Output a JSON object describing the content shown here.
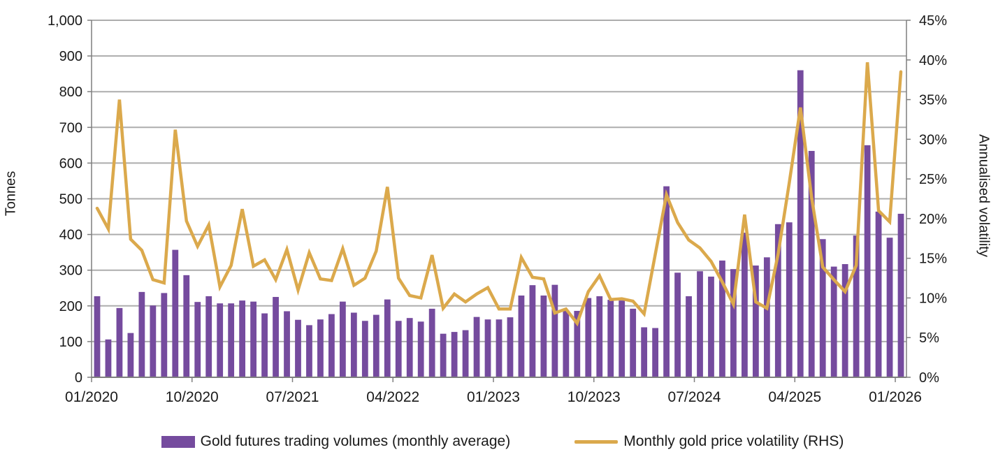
{
  "chart_data": {
    "type": "combo",
    "subtype": [
      "bar",
      "line"
    ],
    "n_months": 73,
    "categories_start": "01/2020",
    "categories_end": "01/2026",
    "x_tick_labels": [
      "01/2020",
      "10/2020",
      "07/2021",
      "04/2022",
      "01/2023",
      "10/2023",
      "07/2024",
      "04/2025",
      "01/2026"
    ],
    "x_tick_interval_months": 9,
    "grid": true,
    "legend_position": "bottom",
    "left_axis": {
      "title": "Tonnes",
      "min": 0,
      "max": 1000,
      "step": 100,
      "tick_labels": [
        "0",
        "100",
        "200",
        "300",
        "400",
        "500",
        "600",
        "700",
        "800",
        "900",
        "1,000"
      ]
    },
    "right_axis": {
      "title": "Annualised volatility",
      "min": 0,
      "max": 45,
      "step": 5,
      "tick_labels": [
        "0%",
        "5%",
        "10%",
        "15%",
        "20%",
        "25%",
        "30%",
        "35%",
        "40%",
        "45%"
      ]
    },
    "series": [
      {
        "name": "Gold futures trading volumes (monthly average)",
        "type": "bar",
        "axis": "left",
        "unit": "tonnes",
        "color": "#754B9E",
        "values": [
          227,
          106,
          194,
          124,
          239,
          201,
          236,
          357,
          286,
          211,
          227,
          207,
          207,
          215,
          212,
          179,
          225,
          185,
          161,
          146,
          162,
          177,
          212,
          181,
          158,
          175,
          218,
          158,
          166,
          156,
          192,
          122,
          127,
          132,
          169,
          162,
          162,
          168,
          229,
          258,
          229,
          259,
          188,
          186,
          222,
          227,
          217,
          215,
          192,
          140,
          138,
          535,
          293,
          227,
          297,
          282,
          327,
          303,
          405,
          313,
          336,
          429,
          434,
          860,
          634,
          387,
          310,
          317,
          397,
          650,
          464,
          391,
          458
        ]
      },
      {
        "name": "Monthly gold price volatility (RHS)",
        "type": "line",
        "axis": "right",
        "unit": "%",
        "color": "#DBA94C",
        "values": [
          21.3,
          18.7,
          35.0,
          17.4,
          16.0,
          12.3,
          11.9,
          31.2,
          19.7,
          16.5,
          19.2,
          11.4,
          14.1,
          21.2,
          14.0,
          14.8,
          12.3,
          16.1,
          11.0,
          15.7,
          12.4,
          12.2,
          16.2,
          11.6,
          12.5,
          15.9,
          24.0,
          12.5,
          10.3,
          10.0,
          15.4,
          8.7,
          10.5,
          9.5,
          10.5,
          11.3,
          8.6,
          8.6,
          15.1,
          12.6,
          12.4,
          8.1,
          8.6,
          6.8,
          10.8,
          12.8,
          9.8,
          9.9,
          9.6,
          8.0,
          15.5,
          23.0,
          19.5,
          17.3,
          16.3,
          14.6,
          12.0,
          9.2,
          20.5,
          9.5,
          8.7,
          15.5,
          24.5,
          34.0,
          22.7,
          13.9,
          12.3,
          10.8,
          14.1,
          39.7,
          21.0,
          19.6,
          38.5
        ]
      }
    ],
    "colors": {
      "bar": "#754B9E",
      "line": "#DBA94C",
      "gridline": "#ADADAD",
      "axis_line": "#7F7F7F",
      "text": "#1A1A1A",
      "background": "#FFFFFF"
    }
  },
  "legend": {
    "items": [
      {
        "label": "Gold futures trading volumes (monthly average)"
      },
      {
        "label": "Monthly gold price volatility (RHS)"
      }
    ]
  }
}
